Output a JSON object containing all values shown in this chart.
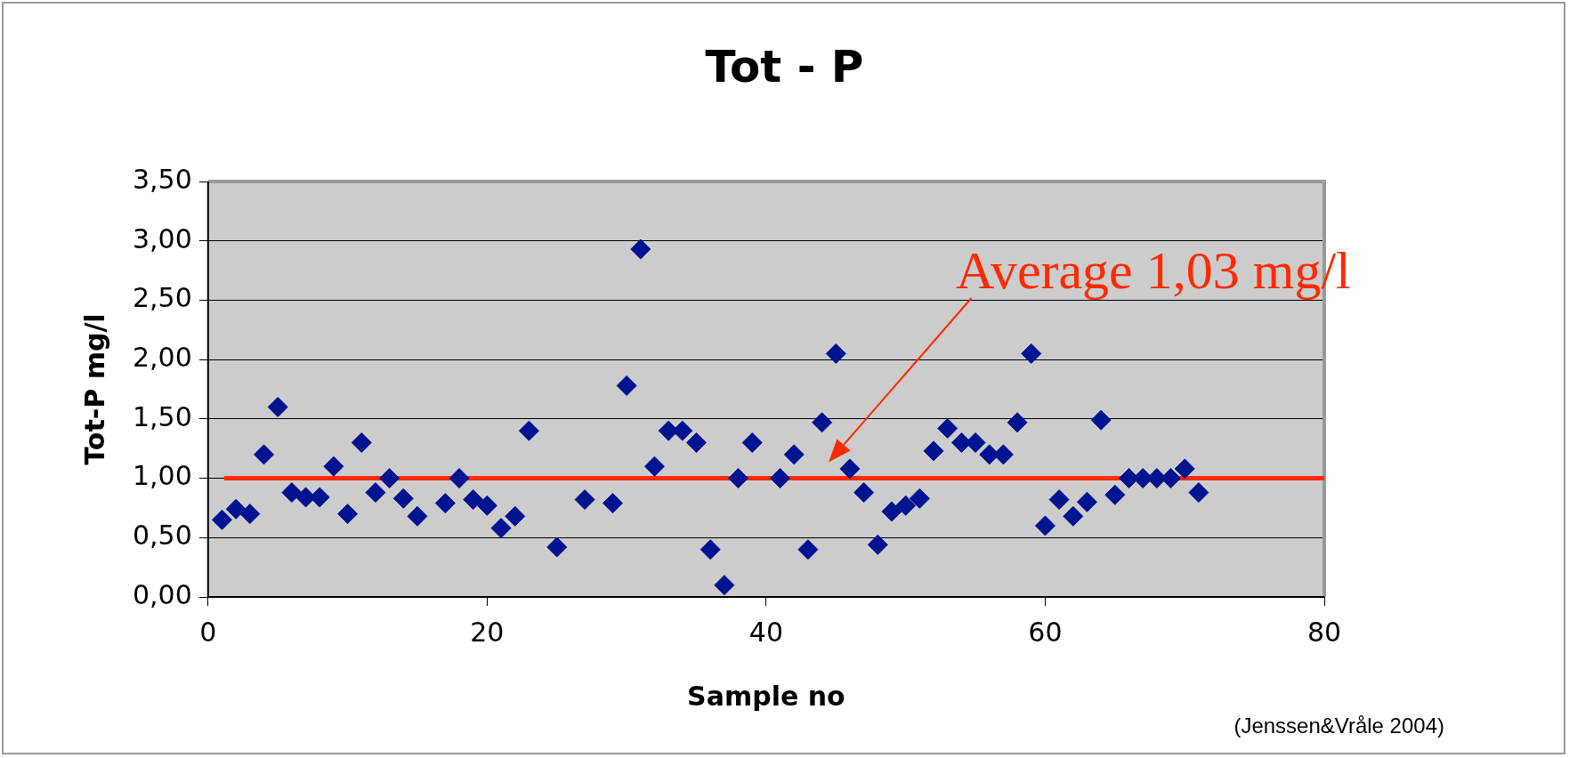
{
  "chart_data": {
    "type": "scatter",
    "title": "Tot - P",
    "xlabel": "Sample no",
    "ylabel": "Tot-P mg/l",
    "x": [
      1,
      2,
      3,
      4,
      5,
      6,
      7,
      8,
      9,
      10,
      11,
      12,
      13,
      14,
      15,
      17,
      18,
      19,
      20,
      21,
      22,
      23,
      25,
      27,
      29,
      30,
      31,
      32,
      33,
      34,
      35,
      36,
      37,
      38,
      39,
      41,
      42,
      43,
      44,
      45,
      46,
      47,
      48,
      49,
      50,
      51,
      52,
      53,
      54,
      55,
      56,
      57,
      58,
      59,
      60,
      61,
      62,
      63,
      64,
      65,
      66,
      67,
      68,
      69,
      70,
      71
    ],
    "series": [
      {
        "color": "#001391",
        "values": [
          0.65,
          0.74,
          0.7,
          1.2,
          1.6,
          0.88,
          0.84,
          0.84,
          1.1,
          0.7,
          1.3,
          0.88,
          1.0,
          0.83,
          0.68,
          0.79,
          1.0,
          0.82,
          0.77,
          0.58,
          0.68,
          1.4,
          0.42,
          0.82,
          0.79,
          1.78,
          2.93,
          1.1,
          1.4,
          1.4,
          1.3,
          0.4,
          0.1,
          1.0,
          1.3,
          1.0,
          1.2,
          0.4,
          1.47,
          2.05,
          1.08,
          0.88,
          0.44,
          0.72,
          0.77,
          0.83,
          1.23,
          1.42,
          1.3,
          1.3,
          1.2,
          1.2,
          1.47,
          2.05,
          0.6,
          0.82,
          0.68,
          0.8,
          1.49,
          0.86,
          1.0,
          1.0,
          1.0,
          1.0,
          1.08,
          0.88
        ]
      }
    ],
    "xlim": [
      0,
      80
    ],
    "xticks": [
      0,
      20,
      40,
      60,
      80
    ],
    "ylim": [
      0,
      3.5
    ],
    "yticks": [
      {
        "value": 0,
        "label": "0,00"
      },
      {
        "value": 0.5,
        "label": "0,50"
      },
      {
        "value": 1,
        "label": "1,00"
      },
      {
        "value": 1.5,
        "label": "1,50"
      },
      {
        "value": 2,
        "label": "2,00"
      },
      {
        "value": 2.5,
        "label": "2,50"
      },
      {
        "value": 3,
        "label": "3,00"
      },
      {
        "value": 3.5,
        "label": "3,50"
      }
    ],
    "ref_lines": [
      {
        "axis": "y",
        "value": 1.0,
        "label": "Average 1,03 mg/l",
        "color": "#ff2a00"
      }
    ],
    "annotations": [
      "(Jenssen&Vråle 2004)"
    ],
    "grid": "y",
    "legend": false,
    "marker": "diamond"
  }
}
